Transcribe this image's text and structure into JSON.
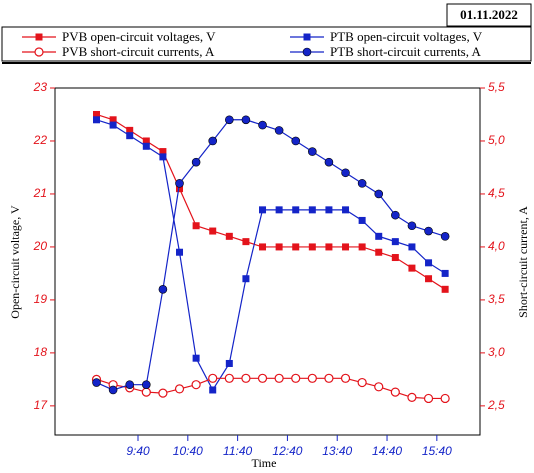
{
  "date": "01.11.2022",
  "chart_data": {
    "type": "line",
    "xlabel": "Time",
    "ylabel": "Open-circuit voltage, V",
    "y2label": "Short-circuit current, A",
    "x": [
      530,
      550,
      570,
      590,
      610,
      630,
      650,
      670,
      690,
      710,
      730,
      750,
      770,
      790,
      810,
      830,
      850,
      870,
      890,
      910,
      930,
      950
    ],
    "xlim": [
      480,
      992
    ],
    "xticks": [
      {
        "value": 580,
        "label": "9:40"
      },
      {
        "value": 640,
        "label": "10:40"
      },
      {
        "value": 700,
        "label": "11:40"
      },
      {
        "value": 760,
        "label": "12:40"
      },
      {
        "value": 820,
        "label": "13:40"
      },
      {
        "value": 880,
        "label": "14:40"
      },
      {
        "value": 940,
        "label": "15:40"
      }
    ],
    "ylim": [
      16.45,
      23
    ],
    "yticks": [
      17,
      18,
      19,
      20,
      21,
      22,
      23
    ],
    "y2lim": [
      2.225,
      5.5
    ],
    "y2ticks": [
      {
        "value": 2.5,
        "label": "2,5"
      },
      {
        "value": 3.0,
        "label": "3,0"
      },
      {
        "value": 3.5,
        "label": "3,5"
      },
      {
        "value": 4.0,
        "label": "4,0"
      },
      {
        "value": 4.5,
        "label": "4,5"
      },
      {
        "value": 5.0,
        "label": "5,0"
      },
      {
        "value": 5.5,
        "label": "5,5"
      }
    ],
    "series": [
      {
        "name": "PVB open-circuit voltages, V",
        "color": "#e3131b",
        "marker": "square",
        "values": [
          22.5,
          22.4,
          22.2,
          22.0,
          21.8,
          21.1,
          20.4,
          20.3,
          20.2,
          20.1,
          20.0,
          20.0,
          20.0,
          20.0,
          20.0,
          20.0,
          20.0,
          19.9,
          19.8,
          19.6,
          19.4,
          19.2
        ]
      },
      {
        "name": "PTB open-circuit voltages, V",
        "color": "#1424c8",
        "marker": "square",
        "values": [
          22.4,
          22.3,
          22.1,
          21.9,
          21.7,
          19.9,
          17.9,
          17.3,
          17.8,
          19.4,
          20.7,
          20.7,
          20.7,
          20.7,
          20.7,
          20.7,
          20.5,
          20.2,
          20.1,
          20.0,
          19.7,
          19.5
        ]
      },
      {
        "name": "PVB short-circuit currents, A",
        "color": "#e3131b",
        "marker": "circle",
        "axis": "y2",
        "values": [
          2.75,
          2.7,
          2.67,
          2.63,
          2.62,
          2.66,
          2.7,
          2.76,
          2.76,
          2.76,
          2.76,
          2.76,
          2.76,
          2.76,
          2.76,
          2.76,
          2.72,
          2.68,
          2.63,
          2.58,
          2.57,
          2.57
        ]
      },
      {
        "name": "PTB short-circuit currents, A",
        "color": "#1424c8",
        "marker": "circle",
        "axis": "y2",
        "values": [
          2.72,
          2.65,
          2.7,
          2.7,
          3.6,
          4.6,
          4.8,
          5.0,
          5.2,
          5.2,
          5.15,
          5.1,
          5.0,
          4.9,
          4.8,
          4.7,
          4.6,
          4.5,
          4.3,
          4.2,
          4.15,
          4.1
        ]
      }
    ]
  }
}
